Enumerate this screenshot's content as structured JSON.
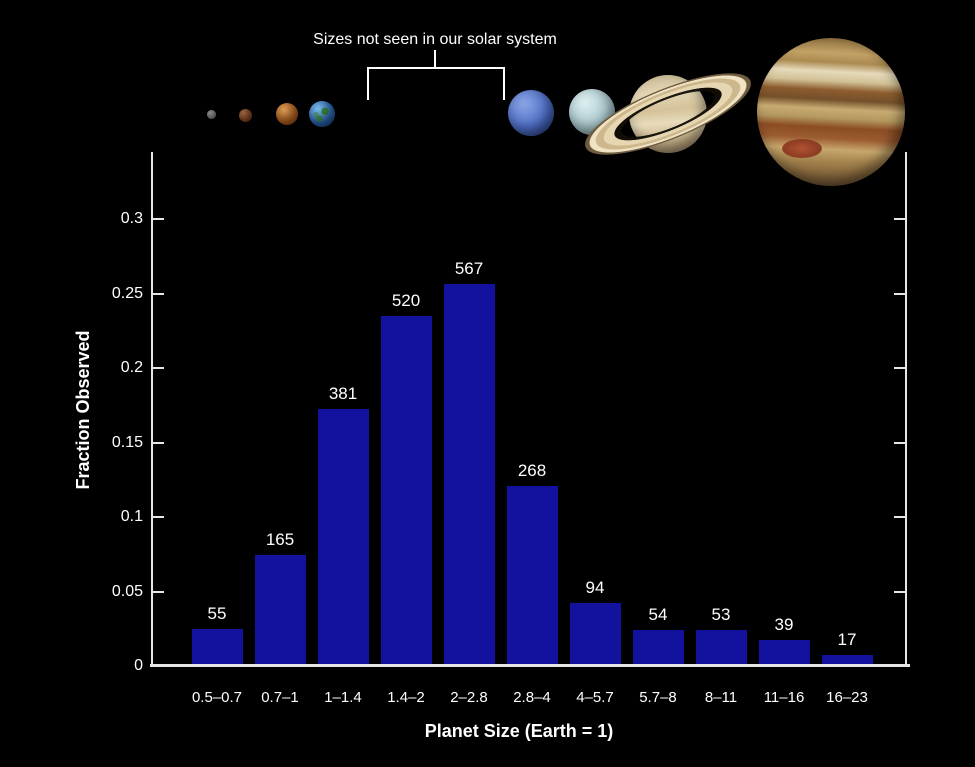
{
  "figure": {
    "annotation": "Sizes not seen in our solar system",
    "planets": [
      "mercury",
      "mars",
      "venus",
      "earth",
      "neptune",
      "uranus",
      "saturn",
      "jupiter"
    ]
  },
  "colors": {
    "background": "#000000",
    "bar": "#12129e",
    "axis": "#e6e6e6",
    "text": "#ffffff"
  },
  "chart_data": {
    "type": "bar",
    "title": "",
    "xlabel": "Planet Size (Earth = 1)",
    "ylabel": "Fraction Observed",
    "categories": [
      "0.5–0.7",
      "0.7–1",
      "1–1.4",
      "1.4–2",
      "2–2.8",
      "2.8–4",
      "4–5.7",
      "5.7–8",
      "8–11",
      "11–16",
      "16–23"
    ],
    "counts": [
      55,
      165,
      381,
      520,
      567,
      268,
      94,
      54,
      53,
      39,
      17
    ],
    "values": [
      0.0249,
      0.0746,
      0.1722,
      0.235,
      0.2562,
      0.1211,
      0.0425,
      0.0244,
      0.024,
      0.0176,
      0.0077
    ],
    "bar_labels": [
      "55",
      "165",
      "381",
      "520",
      "567",
      "268",
      "94",
      "54",
      "53",
      "39",
      "17"
    ],
    "yticks": [
      {
        "value": 0,
        "label": "0"
      },
      {
        "value": 0.05,
        "label": "0.05"
      },
      {
        "value": 0.1,
        "label": "0.1"
      },
      {
        "value": 0.15,
        "label": "0.15"
      },
      {
        "value": 0.2,
        "label": "0.2"
      },
      {
        "value": 0.25,
        "label": "0.25"
      },
      {
        "value": 0.3,
        "label": "0.3"
      }
    ],
    "ylim": [
      0,
      0.345
    ],
    "grid": false,
    "legend": null
  }
}
